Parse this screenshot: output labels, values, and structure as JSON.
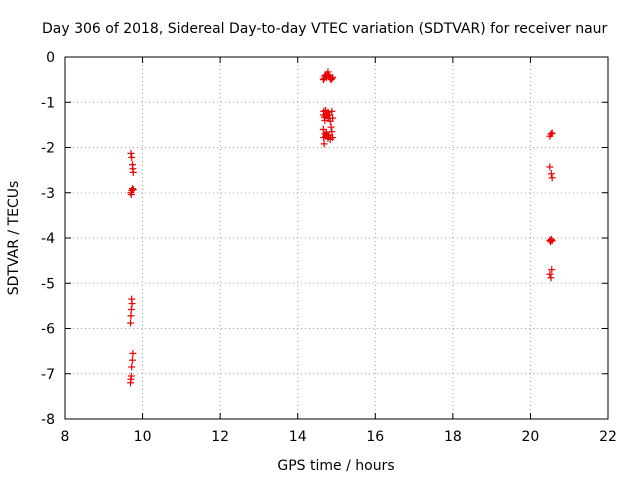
{
  "chart_data": {
    "type": "scatter",
    "title": "Day 306 of 2018, Sidereal Day-to-day VTEC variation (SDTVAR) for receiver naur",
    "xlabel": "GPS time / hours",
    "ylabel": "SDTVAR / TECUs",
    "xlim": [
      8,
      22
    ],
    "ylim": [
      -8,
      0
    ],
    "xticks": [
      8,
      10,
      12,
      14,
      16,
      18,
      20,
      22
    ],
    "yticks": [
      0,
      -1,
      -2,
      -3,
      -4,
      -5,
      -6,
      -7,
      -8
    ],
    "xtick_labels": [
      "8",
      "10",
      "12",
      "14",
      "16",
      "18",
      "20",
      "22"
    ],
    "ytick_labels": [
      "0",
      "-1",
      "-2",
      "-3",
      "-4",
      "-5",
      "-6",
      "-7",
      "-8"
    ],
    "grid": true,
    "marker": "plus",
    "color": "#e60000",
    "series": [
      {
        "name": "SDTVAR",
        "points": [
          [
            9.7,
            -2.13
          ],
          [
            9.72,
            -2.22
          ],
          [
            9.74,
            -2.38
          ],
          [
            9.75,
            -2.47
          ],
          [
            9.76,
            -2.55
          ],
          [
            9.7,
            -3.0
          ],
          [
            9.72,
            -2.95
          ],
          [
            9.74,
            -2.91
          ],
          [
            9.76,
            -2.93
          ],
          [
            9.71,
            -3.04
          ],
          [
            9.72,
            -5.35
          ],
          [
            9.73,
            -5.45
          ],
          [
            9.71,
            -5.58
          ],
          [
            9.7,
            -5.72
          ],
          [
            9.69,
            -5.88
          ],
          [
            9.75,
            -6.55
          ],
          [
            9.74,
            -6.7
          ],
          [
            9.72,
            -6.85
          ],
          [
            9.71,
            -7.05
          ],
          [
            9.7,
            -7.12
          ],
          [
            9.69,
            -7.2
          ],
          [
            14.66,
            -0.5
          ],
          [
            14.68,
            -0.47
          ],
          [
            14.7,
            -0.42
          ],
          [
            14.72,
            -0.4
          ],
          [
            14.74,
            -0.45
          ],
          [
            14.76,
            -0.38
          ],
          [
            14.78,
            -0.33
          ],
          [
            14.8,
            -0.4
          ],
          [
            14.82,
            -0.44
          ],
          [
            14.84,
            -0.47
          ],
          [
            14.86,
            -0.5
          ],
          [
            14.88,
            -0.48
          ],
          [
            14.9,
            -0.45
          ],
          [
            14.66,
            -1.28
          ],
          [
            14.67,
            -1.2
          ],
          [
            14.69,
            -1.33
          ],
          [
            14.7,
            -1.4
          ],
          [
            14.72,
            -1.18
          ],
          [
            14.74,
            -1.25
          ],
          [
            14.76,
            -1.3
          ],
          [
            14.78,
            -1.22
          ],
          [
            14.8,
            -1.35
          ],
          [
            14.82,
            -1.28
          ],
          [
            14.84,
            -1.42
          ],
          [
            14.86,
            -1.55
          ],
          [
            14.88,
            -1.2
          ],
          [
            14.9,
            -1.35
          ],
          [
            14.66,
            -1.6
          ],
          [
            14.67,
            -1.78
          ],
          [
            14.68,
            -1.92
          ],
          [
            14.7,
            -1.7
          ],
          [
            14.72,
            -1.75
          ],
          [
            14.74,
            -1.68
          ],
          [
            14.76,
            -1.72
          ],
          [
            14.78,
            -1.8
          ],
          [
            14.8,
            -1.74
          ],
          [
            14.84,
            -1.82
          ],
          [
            14.88,
            -1.65
          ],
          [
            14.9,
            -1.78
          ],
          [
            20.5,
            -1.75
          ],
          [
            20.53,
            -1.7
          ],
          [
            20.56,
            -1.68
          ],
          [
            20.5,
            -2.43
          ],
          [
            20.54,
            -2.58
          ],
          [
            20.56,
            -2.67
          ],
          [
            20.5,
            -4.05
          ],
          [
            20.52,
            -4.08
          ],
          [
            20.54,
            -4.03
          ],
          [
            20.56,
            -4.06
          ],
          [
            20.5,
            -4.8
          ],
          [
            20.53,
            -4.88
          ],
          [
            20.55,
            -4.7
          ]
        ]
      }
    ]
  }
}
